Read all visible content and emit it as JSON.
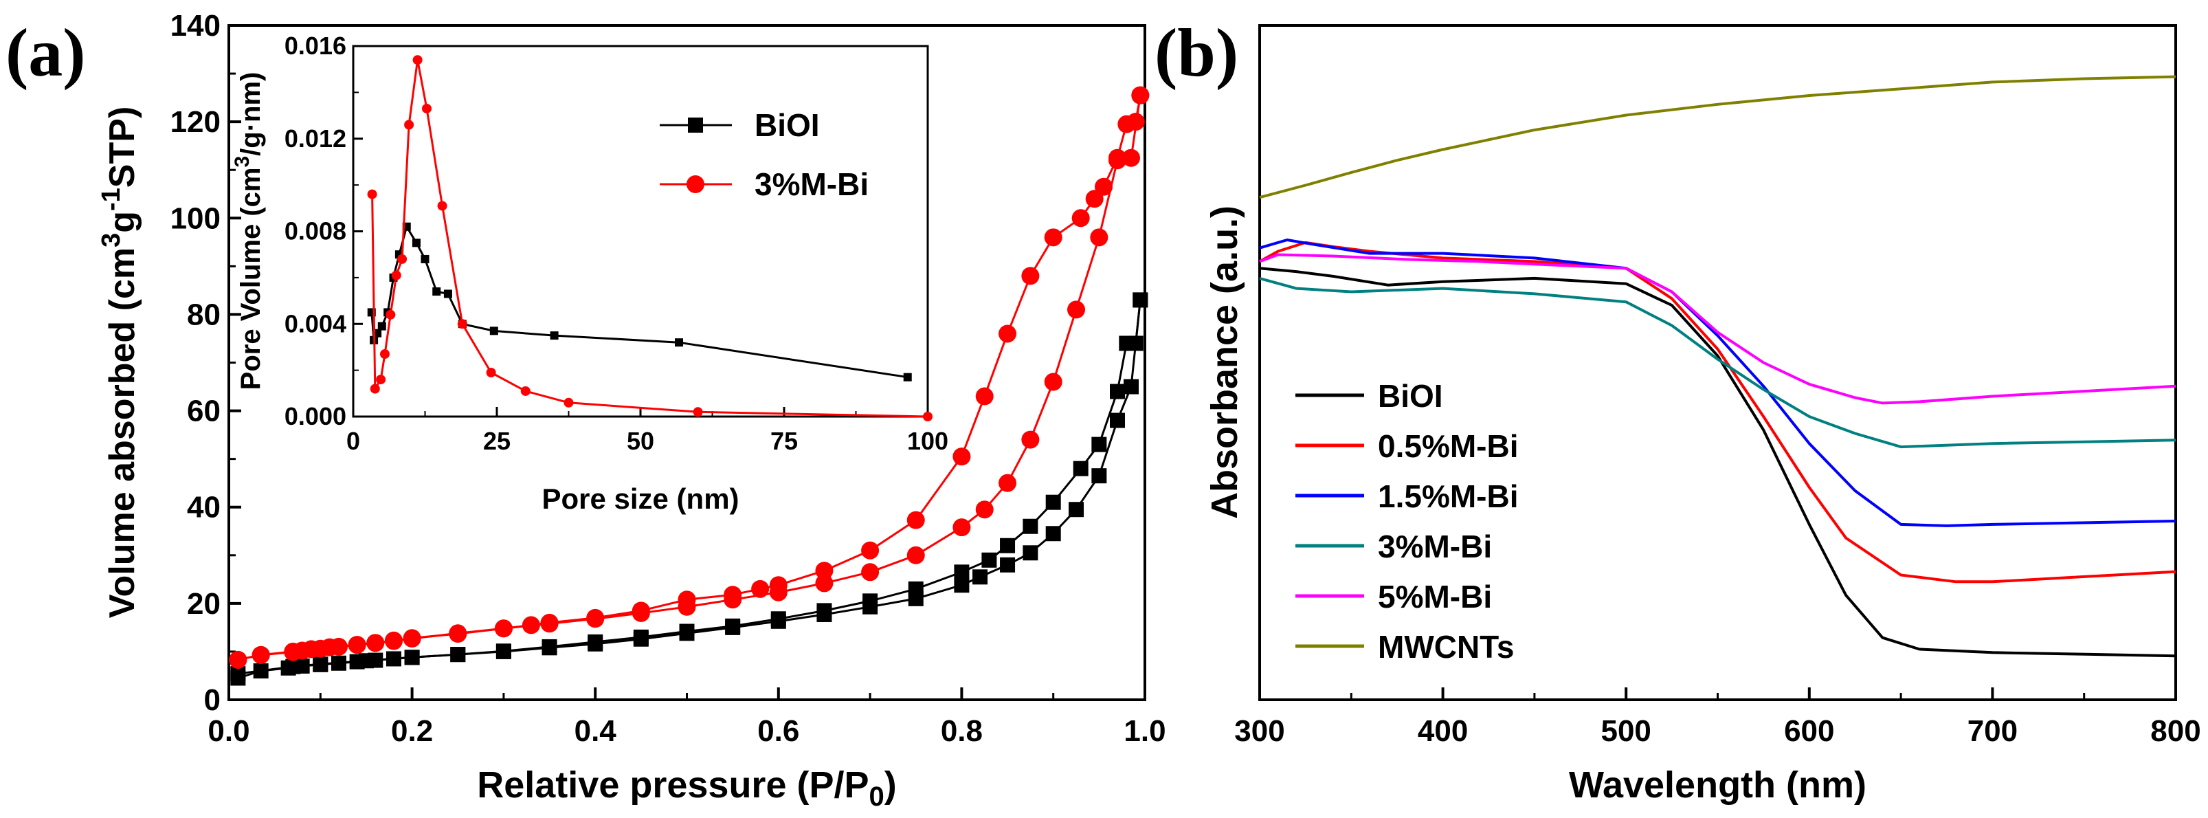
{
  "panel_labels": {
    "a": "(a)",
    "b": "(b)"
  },
  "chart_data": [
    {
      "id": "a-main",
      "type": "line",
      "title": "",
      "panel": "(a)",
      "xlabel_main": "Relative pressure (P/P",
      "xlabel_sub": "0",
      "xlabel_end": ")",
      "ylabel_part1": "Volume absorbed (cm",
      "ylabel_sup1": "3",
      "ylabel_part2": "g",
      "ylabel_sup2": "-1",
      "ylabel_part3": "STP)",
      "xlim": [
        0,
        1.0
      ],
      "ylim": [
        0,
        140
      ],
      "xticks": [
        "0.0",
        "0.2",
        "0.4",
        "0.6",
        "0.8",
        "1.0"
      ],
      "yticks": [
        "0",
        "20",
        "40",
        "60",
        "80",
        "100",
        "120",
        "140"
      ],
      "series": [
        {
          "name": "BiOI",
          "color": "#000000",
          "marker": "square",
          "adsorption": [
            [
              0.01,
              4.5
            ],
            [
              0.035,
              6.0
            ],
            [
              0.065,
              6.6
            ],
            [
              0.08,
              7.0
            ],
            [
              0.1,
              7.3
            ],
            [
              0.12,
              7.6
            ],
            [
              0.14,
              7.9
            ],
            [
              0.16,
              8.2
            ],
            [
              0.18,
              8.5
            ],
            [
              0.2,
              8.8
            ],
            [
              0.25,
              9.4
            ],
            [
              0.3,
              10.0
            ],
            [
              0.35,
              10.8
            ],
            [
              0.4,
              11.6
            ],
            [
              0.45,
              12.6
            ],
            [
              0.5,
              13.8
            ],
            [
              0.55,
              15.0
            ],
            [
              0.6,
              16.3
            ],
            [
              0.65,
              17.7
            ],
            [
              0.7,
              19.3
            ],
            [
              0.75,
              21.0
            ],
            [
              0.8,
              23.8
            ],
            [
              0.82,
              25.5
            ],
            [
              0.85,
              28.0
            ],
            [
              0.875,
              30.5
            ],
            [
              0.9,
              34.5
            ],
            [
              0.925,
              39.5
            ],
            [
              0.95,
              46.5
            ],
            [
              0.97,
              58.0
            ],
            [
              0.985,
              65.0
            ],
            [
              0.995,
              83.0
            ]
          ],
          "desorption": [
            [
              0.995,
              83.0
            ],
            [
              0.99,
              74.0
            ],
            [
              0.98,
              74.0
            ],
            [
              0.97,
              64.0
            ],
            [
              0.95,
              53.0
            ],
            [
              0.93,
              48.0
            ],
            [
              0.9,
              41.0
            ],
            [
              0.875,
              36.0
            ],
            [
              0.85,
              32.0
            ],
            [
              0.83,
              29.0
            ],
            [
              0.8,
              26.5
            ],
            [
              0.75,
              23.0
            ],
            [
              0.7,
              20.5
            ],
            [
              0.65,
              18.5
            ],
            [
              0.6,
              16.8
            ],
            [
              0.55,
              15.3
            ],
            [
              0.5,
              14.2
            ],
            [
              0.45,
              13.0
            ],
            [
              0.4,
              12.0
            ],
            [
              0.35,
              11.0
            ],
            [
              0.3,
              10.1
            ],
            [
              0.25,
              9.4
            ],
            [
              0.2,
              8.8
            ],
            [
              0.15,
              8.1
            ],
            [
              0.1,
              7.4
            ],
            [
              0.07,
              6.9
            ],
            [
              0.01,
              5.4
            ]
          ]
        },
        {
          "name": "3%M-Bi",
          "color": "#ff0000",
          "marker": "circle",
          "adsorption": [
            [
              0.01,
              8.3
            ],
            [
              0.035,
              9.3
            ],
            [
              0.07,
              10.0
            ],
            [
              0.09,
              10.5
            ],
            [
              0.11,
              10.9
            ],
            [
              0.14,
              11.4
            ],
            [
              0.16,
              11.8
            ],
            [
              0.18,
              12.3
            ],
            [
              0.2,
              12.7
            ],
            [
              0.25,
              13.8
            ],
            [
              0.3,
              14.8
            ],
            [
              0.35,
              15.8
            ],
            [
              0.4,
              16.8
            ],
            [
              0.45,
              18.0
            ],
            [
              0.5,
              19.3
            ],
            [
              0.55,
              20.8
            ],
            [
              0.6,
              22.3
            ],
            [
              0.65,
              24.2
            ],
            [
              0.7,
              26.5
            ],
            [
              0.75,
              30.0
            ],
            [
              0.8,
              35.8
            ],
            [
              0.825,
              39.5
            ],
            [
              0.85,
              45.0
            ],
            [
              0.875,
              54.0
            ],
            [
              0.9,
              66.0
            ],
            [
              0.925,
              81.0
            ],
            [
              0.95,
              96.0
            ],
            [
              0.97,
              112.0
            ],
            [
              0.985,
              112.5
            ],
            [
              0.995,
              125.5
            ]
          ],
          "desorption": [
            [
              0.995,
              125.5
            ],
            [
              0.99,
              120.0
            ],
            [
              0.98,
              119.5
            ],
            [
              0.97,
              112.5
            ],
            [
              0.955,
              106.5
            ],
            [
              0.945,
              104.0
            ],
            [
              0.93,
              100.0
            ],
            [
              0.9,
              96.0
            ],
            [
              0.875,
              88.0
            ],
            [
              0.85,
              76.0
            ],
            [
              0.825,
              63.0
            ],
            [
              0.8,
              50.5
            ],
            [
              0.75,
              37.3
            ],
            [
              0.7,
              31.0
            ],
            [
              0.65,
              26.8
            ],
            [
              0.6,
              23.8
            ],
            [
              0.58,
              23.0
            ],
            [
              0.55,
              21.8
            ],
            [
              0.5,
              20.8
            ],
            [
              0.45,
              18.5
            ],
            [
              0.4,
              17.0
            ],
            [
              0.35,
              16.0
            ],
            [
              0.33,
              15.5
            ],
            [
              0.3,
              14.8
            ],
            [
              0.25,
              13.7
            ],
            [
              0.2,
              12.8
            ],
            [
              0.18,
              12.2
            ],
            [
              0.16,
              11.8
            ],
            [
              0.14,
              11.4
            ],
            [
              0.12,
              11.0
            ],
            [
              0.1,
              10.6
            ],
            [
              0.08,
              10.2
            ],
            [
              0.07,
              9.9
            ],
            [
              0.035,
              9.3
            ],
            [
              0.01,
              8.3
            ]
          ]
        }
      ],
      "legend_position": "top-right"
    },
    {
      "id": "a-inset",
      "type": "line",
      "xlabel": "Pore size (nm)",
      "ylabel_part1": "Pore Volume (cm",
      "ylabel_sup": "3",
      "ylabel_part2": "/g·nm)",
      "xlim": [
        0,
        100
      ],
      "ylim": [
        0,
        0.016
      ],
      "xticks": [
        "0",
        "25",
        "50",
        "75",
        "100"
      ],
      "yticks": [
        "0.000",
        "0.004",
        "0.008",
        "0.012",
        "0.016"
      ],
      "series": [
        {
          "name": "BiOI",
          "color": "#000000",
          "marker": "square",
          "points": [
            [
              3.2,
              0.0045
            ],
            [
              3.6,
              0.0033
            ],
            [
              4.2,
              0.0036
            ],
            [
              5.0,
              0.0039
            ],
            [
              6.0,
              0.0045
            ],
            [
              7.0,
              0.006
            ],
            [
              8.0,
              0.007
            ],
            [
              9.3,
              0.0082
            ],
            [
              11.0,
              0.0075
            ],
            [
              12.5,
              0.0068
            ],
            [
              14.5,
              0.0054
            ],
            [
              16.5,
              0.0053
            ],
            [
              19.0,
              0.004
            ],
            [
              24.5,
              0.0037
            ],
            [
              35.0,
              0.0035
            ],
            [
              56.7,
              0.0032
            ],
            [
              96.5,
              0.0017
            ]
          ]
        },
        {
          "name": "3%M-Bi",
          "color": "#ff0000",
          "marker": "circle",
          "points": [
            [
              3.3,
              0.0096
            ],
            [
              3.8,
              0.0012
            ],
            [
              4.8,
              0.0016
            ],
            [
              5.5,
              0.0027
            ],
            [
              6.5,
              0.0044
            ],
            [
              7.5,
              0.0061
            ],
            [
              8.5,
              0.0068
            ],
            [
              9.7,
              0.0126
            ],
            [
              11.2,
              0.0154
            ],
            [
              12.8,
              0.0133
            ],
            [
              15.5,
              0.0091
            ],
            [
              19.0,
              0.004
            ],
            [
              24.0,
              0.0019
            ],
            [
              30.0,
              0.0011
            ],
            [
              37.5,
              0.0006
            ],
            [
              60.0,
              0.0002
            ],
            [
              100.0,
              0.0
            ]
          ]
        }
      ]
    },
    {
      "id": "b",
      "type": "line",
      "panel": "(b)",
      "xlabel": "Wavelength (nm)",
      "ylabel": "Absorbance (a.u.)",
      "xlim": [
        300,
        800
      ],
      "ylim": [
        0,
        100
      ],
      "xticks": [
        "300",
        "400",
        "500",
        "600",
        "700",
        "800"
      ],
      "yticks": [],
      "legend_position": "bottom-left",
      "series": [
        {
          "name": "BiOI",
          "color": "#000000",
          "x": [
            300,
            320,
            340,
            370,
            400,
            450,
            500,
            525,
            550,
            575,
            600,
            620,
            640,
            660,
            700,
            800
          ],
          "y": [
            64,
            63.5,
            62.8,
            61.5,
            62,
            62.5,
            61.7,
            58.5,
            51,
            40,
            26,
            15.5,
            9.2,
            7.5,
            7,
            6.5
          ]
        },
        {
          "name": "0.5%M-Bi",
          "color": "#ff0000",
          "x": [
            300,
            310,
            325,
            340,
            360,
            400,
            450,
            500,
            525,
            550,
            575,
            600,
            620,
            650,
            680,
            700,
            800
          ],
          "y": [
            65,
            66.5,
            67.8,
            67.2,
            66.5,
            65.5,
            65,
            64,
            59.5,
            52,
            42,
            31.5,
            24,
            18.5,
            17.5,
            17.5,
            19
          ]
        },
        {
          "name": "1.5%M-Bi",
          "color": "#0000ff",
          "x": [
            300,
            315,
            330,
            360,
            400,
            450,
            500,
            525,
            550,
            575,
            600,
            625,
            650,
            675,
            700,
            800
          ],
          "y": [
            67,
            68.2,
            67.5,
            66.2,
            66.2,
            65.5,
            64,
            60.5,
            54,
            46.5,
            38,
            31,
            26,
            25.8,
            26,
            26.5
          ]
        },
        {
          "name": "3%M-Bi",
          "color": "#008080",
          "x": [
            300,
            320,
            350,
            400,
            450,
            500,
            525,
            550,
            575,
            600,
            625,
            650,
            700,
            800
          ],
          "y": [
            62.5,
            61,
            60.5,
            61,
            60.2,
            59,
            55.5,
            50.5,
            46,
            42,
            39.5,
            37.5,
            38,
            38.5
          ]
        },
        {
          "name": "5%M-Bi",
          "color": "#ff00ff",
          "x": [
            300,
            310,
            340,
            380,
            420,
            450,
            500,
            525,
            550,
            575,
            600,
            625,
            640,
            660,
            700,
            800
          ],
          "y": [
            65,
            66,
            65.8,
            65.3,
            65,
            64.6,
            64,
            60.5,
            54.5,
            50,
            46.8,
            44.8,
            44,
            44.2,
            45,
            46.5
          ]
        },
        {
          "name": "MWCNTs",
          "color": "#808000",
          "x": [
            300,
            325,
            350,
            375,
            400,
            450,
            500,
            550,
            600,
            650,
            700,
            750,
            800
          ],
          "y": [
            74.5,
            76.3,
            78.2,
            80,
            81.6,
            84.5,
            86.7,
            88.3,
            89.6,
            90.6,
            91.6,
            92.1,
            92.4
          ]
        }
      ]
    }
  ]
}
